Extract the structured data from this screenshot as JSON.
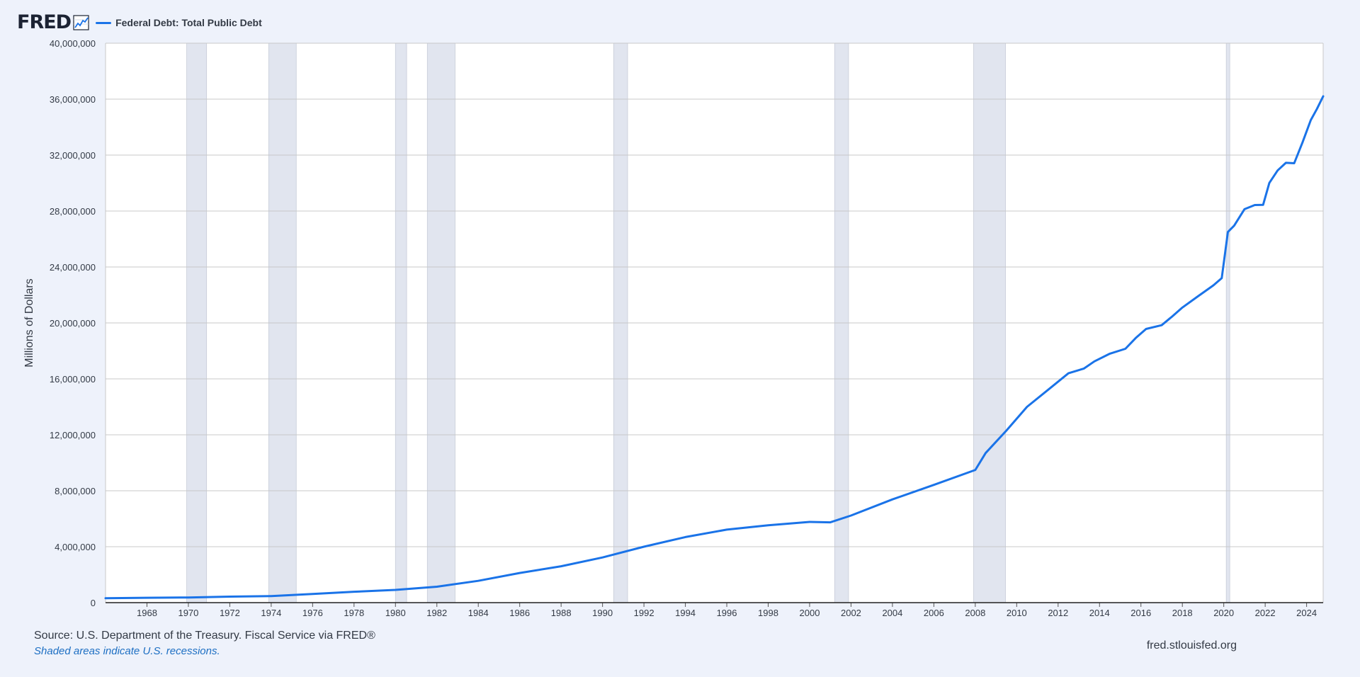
{
  "header": {
    "logo_text": "FRED",
    "logo_icon": "trend-line-chart-icon",
    "series_title": "Federal Debt: Total Public Debt"
  },
  "colors": {
    "background": "#eef2fb",
    "plot_background": "#ffffff",
    "series": "#1a73e8",
    "recession": "#e1e5ef",
    "grid": "#c8c8c8",
    "text": "#333a45",
    "note": "#1d6fc3"
  },
  "footer": {
    "source": "Source: U.S. Department of the Treasury. Fiscal Service via FRED®",
    "note": "Shaded areas indicate U.S. recessions.",
    "site": "fred.stlouisfed.org"
  },
  "chart_data": {
    "type": "line",
    "title": "Federal Debt: Total Public Debt",
    "xlabel": "",
    "ylabel": "Millions of Dollars",
    "xlim": [
      1966.0,
      2024.8
    ],
    "ylim": [
      0,
      40000000
    ],
    "grid": true,
    "legend_position": "top-left",
    "y_ticks": [
      0,
      4000000,
      8000000,
      12000000,
      16000000,
      20000000,
      24000000,
      28000000,
      32000000,
      36000000,
      40000000
    ],
    "y_tick_labels": [
      "0",
      "4,000,000",
      "8,000,000",
      "12,000,000",
      "16,000,000",
      "20,000,000",
      "24,000,000",
      "28,000,000",
      "32,000,000",
      "36,000,000",
      "40,000,000"
    ],
    "x_ticks": [
      1968,
      1970,
      1972,
      1974,
      1976,
      1978,
      1980,
      1982,
      1984,
      1986,
      1988,
      1990,
      1992,
      1994,
      1996,
      1998,
      2000,
      2002,
      2004,
      2006,
      2008,
      2010,
      2012,
      2014,
      2016,
      2018,
      2020,
      2022,
      2024
    ],
    "x_tick_labels": [
      "1968",
      "1970",
      "1972",
      "1974",
      "1976",
      "1978",
      "1980",
      "1982",
      "1984",
      "1986",
      "1988",
      "1990",
      "1992",
      "1994",
      "1996",
      "1998",
      "2000",
      "2002",
      "2004",
      "2006",
      "2008",
      "2010",
      "2012",
      "2014",
      "2016",
      "2018",
      "2020",
      "2022",
      "2024"
    ],
    "recessions": [
      [
        1969.92,
        1970.88
      ],
      [
        1973.88,
        1975.21
      ],
      [
        1980.0,
        1980.54
      ],
      [
        1981.54,
        1982.88
      ],
      [
        1990.54,
        1991.21
      ],
      [
        2001.21,
        2001.88
      ],
      [
        2007.92,
        2009.46
      ],
      [
        2020.12,
        2020.29
      ]
    ],
    "series": [
      {
        "name": "Federal Debt: Total Public Debt",
        "x": [
          1966.0,
          1968.0,
          1970.0,
          1972.0,
          1974.0,
          1976.0,
          1978.0,
          1980.0,
          1982.0,
          1984.0,
          1986.0,
          1988.0,
          1990.0,
          1992.0,
          1994.0,
          1996.0,
          1998.0,
          2000.0,
          2001.0,
          2002.0,
          2004.0,
          2006.0,
          2008.0,
          2008.5,
          2009.5,
          2010.5,
          2011.5,
          2012.5,
          2013.25,
          2013.75,
          2014.5,
          2015.25,
          2015.75,
          2016.25,
          2017.0,
          2017.5,
          2018.0,
          2018.75,
          2019.5,
          2019.9,
          2020.2,
          2020.5,
          2021.0,
          2021.5,
          2021.9,
          2022.2,
          2022.6,
          2023.0,
          2023.4,
          2023.8,
          2024.2,
          2024.5,
          2024.8
        ],
        "values": [
          320000,
          350000,
          370000,
          430000,
          470000,
          620000,
          780000,
          910000,
          1140000,
          1560000,
          2120000,
          2600000,
          3230000,
          4000000,
          4690000,
          5220000,
          5530000,
          5770000,
          5740000,
          6230000,
          7380000,
          8420000,
          9490000,
          10700000,
          12300000,
          14000000,
          15200000,
          16400000,
          16740000,
          17250000,
          17800000,
          18150000,
          18920000,
          19570000,
          19840000,
          20450000,
          21100000,
          21900000,
          22690000,
          23200000,
          26500000,
          26950000,
          28130000,
          28430000,
          28440000,
          30010000,
          30900000,
          31450000,
          31420000,
          32900000,
          34500000,
          35300000,
          36200000
        ]
      }
    ]
  }
}
